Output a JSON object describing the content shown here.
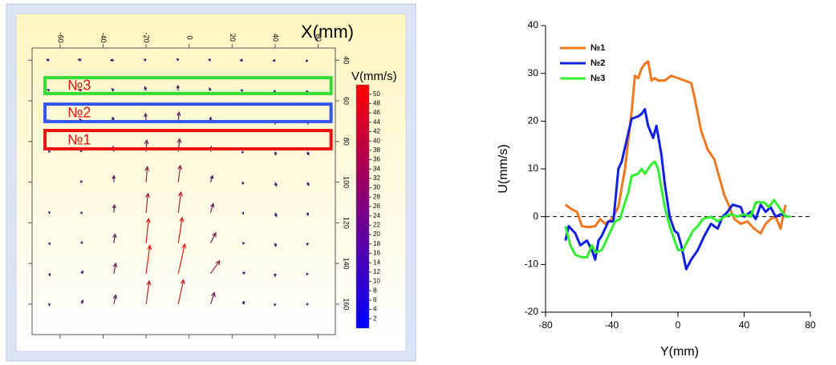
{
  "chart_data": [
    {
      "type": "quiver",
      "xlabel": "X(mm)",
      "colorbar_label": "V(mm/s)",
      "xlim": [
        -73,
        68
      ],
      "ylim": [
        34,
        175
      ],
      "xticks": [
        -60,
        -40,
        -20,
        0,
        20,
        40,
        60
      ],
      "yticks": [
        40,
        60,
        80,
        100,
        120,
        140,
        160
      ],
      "clim": [
        0,
        52
      ],
      "cticks": [
        2,
        4,
        6,
        8,
        10,
        12,
        14,
        16,
        18,
        20,
        22,
        24,
        26,
        28,
        30,
        32,
        34,
        36,
        38,
        40,
        42,
        44,
        46,
        48,
        50
      ],
      "x": [
        -65,
        -50,
        -35,
        -20,
        -5,
        10,
        25,
        40,
        55
      ],
      "y": [
        40,
        55,
        70,
        85,
        100,
        115,
        130,
        145,
        160
      ],
      "u": [
        [
          -4,
          -5,
          -5,
          -3,
          -2,
          -3,
          -4,
          -3,
          -2
        ],
        [
          -3,
          -4,
          -3,
          -2,
          -1,
          -2,
          -3,
          -2,
          -1
        ],
        [
          -2,
          -3,
          -2,
          -1,
          1,
          0,
          -2,
          0,
          1
        ],
        [
          -1,
          -2,
          -1,
          1,
          2,
          1,
          -1,
          1,
          2
        ],
        [
          0,
          -1,
          0,
          2,
          3,
          3,
          0,
          2,
          2
        ],
        [
          0,
          0,
          1,
          3,
          4,
          4,
          1,
          2,
          1
        ],
        [
          1,
          1,
          2,
          4,
          6,
          8,
          2,
          1,
          0
        ],
        [
          1,
          2,
          3,
          6,
          10,
          14,
          3,
          0,
          -1
        ],
        [
          0,
          2,
          3,
          5,
          8,
          6,
          2,
          -1,
          -1
        ]
      ],
      "v": [
        [
          1,
          1,
          0,
          1,
          2,
          1,
          0,
          -1,
          -2
        ],
        [
          2,
          2,
          3,
          6,
          8,
          4,
          1,
          -2,
          -3
        ],
        [
          2,
          3,
          6,
          12,
          14,
          6,
          0,
          -4,
          -4
        ],
        [
          1,
          3,
          8,
          18,
          20,
          8,
          -2,
          -5,
          -5
        ],
        [
          0,
          2,
          10,
          24,
          26,
          10,
          -3,
          -6,
          -5
        ],
        [
          -1,
          1,
          12,
          30,
          32,
          14,
          -2,
          -6,
          -4
        ],
        [
          -2,
          2,
          14,
          38,
          40,
          16,
          0,
          -5,
          -3
        ],
        [
          -3,
          4,
          16,
          44,
          46,
          20,
          2,
          -4,
          -2
        ],
        [
          -2,
          6,
          14,
          36,
          38,
          18,
          4,
          -2,
          -1
        ]
      ],
      "regions": [
        {
          "label": "№3",
          "color": "#33dd33",
          "x": [
            -67,
            66
          ],
          "y": [
            48.6,
            56.4
          ]
        },
        {
          "label": "№2",
          "color": "#3355ee",
          "x": [
            -67,
            66
          ],
          "y": [
            61.6,
            70.2
          ]
        },
        {
          "label": "№1",
          "color": "#ee1111",
          "x": [
            -67,
            66
          ],
          "y": [
            74.6,
            83.6
          ]
        }
      ]
    },
    {
      "type": "line",
      "xlabel": "Y(mm)",
      "ylabel": "U(mm/s)",
      "xlim": [
        -80,
        80
      ],
      "xticks": [
        -80,
        -40,
        0,
        40,
        80
      ],
      "ylim": [
        -20,
        40
      ],
      "yticks": [
        -20,
        -10,
        0,
        10,
        20,
        30,
        40
      ],
      "zero_line": true,
      "legend": "upper left",
      "series": [
        {
          "name": "№1",
          "color": "#f07820",
          "x": [
            -68,
            -64,
            -61,
            -58,
            -54,
            -50,
            -47,
            -44,
            -40,
            -36,
            -32,
            -28,
            -26,
            -24,
            -22,
            -20,
            -18,
            -16,
            -14,
            -12,
            -8,
            -4,
            0,
            4,
            8,
            10,
            14,
            18,
            22,
            26,
            28,
            30,
            34,
            38,
            42,
            46,
            50,
            53,
            56,
            59,
            62,
            65
          ],
          "values": [
            2.5,
            1.5,
            1,
            -2,
            -2.2,
            -2,
            -0.5,
            -1.5,
            -0.5,
            2,
            10,
            22,
            29.5,
            29,
            31,
            32,
            32.5,
            28.5,
            29,
            28.5,
            28.5,
            29.5,
            29,
            28.5,
            28,
            25,
            18,
            14,
            12,
            7,
            4.5,
            3,
            -0.5,
            -1.5,
            -1,
            -2.5,
            -3.5,
            -1.5,
            -0.5,
            0,
            -2.5,
            2.5
          ]
        },
        {
          "name": "№2",
          "color": "#1020e0",
          "x": [
            -68,
            -66,
            -62,
            -59,
            -55,
            -52,
            -50,
            -48,
            -46,
            -42,
            -39,
            -36,
            -34,
            -31,
            -28,
            -24,
            -22,
            -20,
            -18,
            -15,
            -13,
            -10,
            -8,
            -5,
            -2,
            0,
            2,
            5,
            8,
            12,
            16,
            20,
            24,
            27,
            30,
            33,
            38,
            40,
            44,
            47,
            50,
            53,
            56,
            59,
            62,
            66
          ],
          "values": [
            -5,
            -2,
            -3.5,
            -6,
            -5,
            -7,
            -9,
            -5,
            -4,
            -1,
            -1,
            10,
            11.5,
            16,
            20.5,
            21,
            21.5,
            22.5,
            19,
            16.5,
            19,
            13,
            7,
            0,
            -3,
            -3.5,
            -6,
            -11,
            -9,
            -7,
            -4,
            -1.5,
            -2.5,
            0,
            1,
            2.5,
            2,
            0,
            1,
            -0.5,
            2.5,
            1,
            2,
            0,
            0.5,
            0
          ]
        },
        {
          "name": "№3",
          "color": "#33ee33",
          "x": [
            -68,
            -65,
            -62,
            -58,
            -55,
            -52,
            -50,
            -46,
            -42,
            -38,
            -35,
            -32,
            -30,
            -28,
            -24,
            -22,
            -20,
            -16,
            -14,
            -12,
            -8,
            -5,
            -2,
            0,
            3,
            6,
            9,
            12,
            15,
            20,
            24,
            28,
            32,
            36,
            40,
            44,
            47,
            52,
            55,
            58,
            62,
            65,
            68
          ],
          "values": [
            -2,
            -6,
            -8,
            -8.5,
            -8.5,
            -6,
            -7.5,
            -7,
            -4,
            -1,
            -0.5,
            3,
            5,
            8.5,
            9,
            10,
            9,
            11,
            11.5,
            10,
            2,
            -2,
            -5,
            -7,
            -7,
            -5,
            -3,
            -2,
            -0.5,
            0,
            -1,
            0,
            0.5,
            0,
            0.5,
            0,
            3,
            3,
            2,
            3.5,
            1.5,
            0,
            0
          ]
        }
      ]
    }
  ]
}
